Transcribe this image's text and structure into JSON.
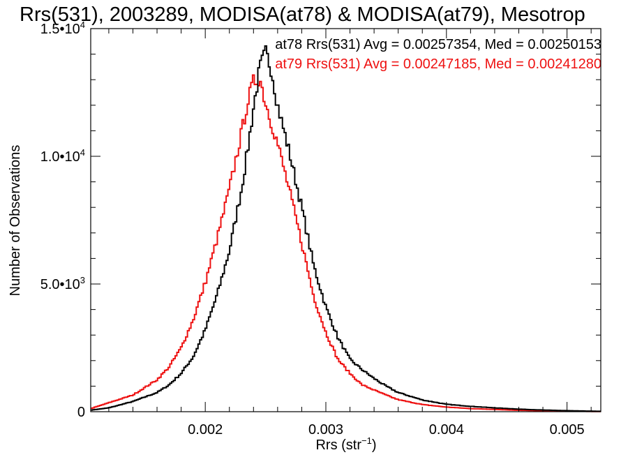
{
  "chart_data": {
    "type": "line",
    "title": "Rrs(531), 2003289, MODISA(at78) & MODISA(at79), Mesotrop",
    "xlabel": {
      "base": "Rrs (str",
      "sup": "−1",
      "close": ")"
    },
    "ylabel": "Number of Observations",
    "xlim": [
      0.00105,
      0.00528
    ],
    "ylim": [
      0,
      15000
    ],
    "x_ticks": [
      {
        "value": 0.002,
        "label": "0.002"
      },
      {
        "value": 0.003,
        "label": "0.003"
      },
      {
        "value": 0.004,
        "label": "0.004"
      },
      {
        "value": 0.005,
        "label": "0.005"
      }
    ],
    "y_ticks": [
      {
        "value": 0,
        "mant": "0",
        "exp": ""
      },
      {
        "value": 5000,
        "mant": "5.0•10",
        "exp": "3"
      },
      {
        "value": 10000,
        "mant": "1.0•10",
        "exp": "4"
      },
      {
        "value": 15000,
        "mant": "1.5•10",
        "exp": "4"
      }
    ],
    "legend": [
      {
        "text": "at78 Rrs(531) Avg = 0.00257354, Med = 0.00250153",
        "color": "#000000"
      },
      {
        "text": "at79 Rrs(531) Avg = 0.00247185, Med = 0.00241280",
        "color": "#ee1111"
      }
    ],
    "series": [
      {
        "color": "#000000",
        "points": [
          [
            0.00105,
            60
          ],
          [
            0.0012,
            150
          ],
          [
            0.0014,
            400
          ],
          [
            0.0016,
            750
          ],
          [
            0.0017,
            1050
          ],
          [
            0.0018,
            1500
          ],
          [
            0.0019,
            2150
          ],
          [
            0.002,
            3200
          ],
          [
            0.0021,
            4600
          ],
          [
            0.0022,
            6300
          ],
          [
            0.0023,
            8700
          ],
          [
            0.00235,
            10200
          ],
          [
            0.0024,
            11900
          ],
          [
            0.00245,
            13400
          ],
          [
            0.0025,
            14050
          ],
          [
            0.00255,
            13400
          ],
          [
            0.0026,
            12000
          ],
          [
            0.0027,
            10100
          ],
          [
            0.0028,
            8000
          ],
          [
            0.0029,
            5700
          ],
          [
            0.003,
            4100
          ],
          [
            0.0031,
            2900
          ],
          [
            0.0032,
            2050
          ],
          [
            0.0033,
            1650
          ],
          [
            0.0034,
            1300
          ],
          [
            0.0035,
            1000
          ],
          [
            0.0036,
            750
          ],
          [
            0.0038,
            460
          ],
          [
            0.004,
            290
          ],
          [
            0.0042,
            210
          ],
          [
            0.0044,
            150
          ],
          [
            0.0046,
            100
          ],
          [
            0.0048,
            65
          ],
          [
            0.005,
            40
          ],
          [
            0.00528,
            15
          ]
        ]
      },
      {
        "color": "#ee1111",
        "points": [
          [
            0.00105,
            120
          ],
          [
            0.0012,
            350
          ],
          [
            0.0014,
            650
          ],
          [
            0.0015,
            950
          ],
          [
            0.0016,
            1250
          ],
          [
            0.0017,
            1750
          ],
          [
            0.0018,
            2500
          ],
          [
            0.0019,
            3600
          ],
          [
            0.002,
            5050
          ],
          [
            0.0021,
            6800
          ],
          [
            0.0022,
            8700
          ],
          [
            0.0023,
            10900
          ],
          [
            0.00235,
            12100
          ],
          [
            0.0024,
            12900
          ],
          [
            0.00245,
            13100
          ],
          [
            0.0025,
            12100
          ],
          [
            0.0026,
            10500
          ],
          [
            0.0027,
            8600
          ],
          [
            0.0028,
            6600
          ],
          [
            0.0029,
            4500
          ],
          [
            0.003,
            3100
          ],
          [
            0.0031,
            2050
          ],
          [
            0.0032,
            1500
          ],
          [
            0.0033,
            1050
          ],
          [
            0.0034,
            850
          ],
          [
            0.0035,
            650
          ],
          [
            0.0036,
            470
          ],
          [
            0.0038,
            280
          ],
          [
            0.004,
            180
          ],
          [
            0.0042,
            120
          ],
          [
            0.0044,
            90
          ],
          [
            0.0046,
            55
          ],
          [
            0.0048,
            35
          ],
          [
            0.005,
            20
          ],
          [
            0.00528,
            5
          ]
        ]
      }
    ]
  }
}
